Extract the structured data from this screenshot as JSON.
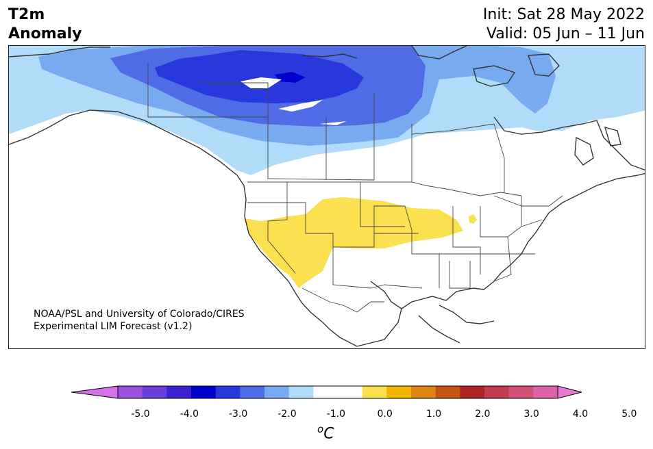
{
  "header": {
    "title_line1": "T2m",
    "title_line2": "Anomaly",
    "init_text": "Init: Sat 28 May 2022",
    "valid_text": "Valid: 05 Jun – 11 Jun"
  },
  "credit": {
    "line1": "NOAA/PSL and University of Colorado/CIRES",
    "line2": "Experimental LIM Forecast (v1.2)"
  },
  "colorbar": {
    "unit": "°C",
    "colors": [
      "#d473e8",
      "#9a52dc",
      "#6b3ed9",
      "#3c22cf",
      "#0000cc",
      "#2838dc",
      "#4f6be6",
      "#78aaf0",
      "#b0dcfa",
      "#ffffff",
      "#ffffff",
      "#fbe04f",
      "#f2b600",
      "#de8412",
      "#c55414",
      "#ad2424",
      "#c23a50",
      "#d24f78",
      "#db63a6",
      "#e878d6"
    ],
    "ticks": [
      "-5.0",
      "-4.0",
      "-3.0",
      "-2.0",
      "-1.0",
      "0.0",
      "1.0",
      "2.0",
      "3.0",
      "4.0",
      "5.0"
    ]
  }
}
